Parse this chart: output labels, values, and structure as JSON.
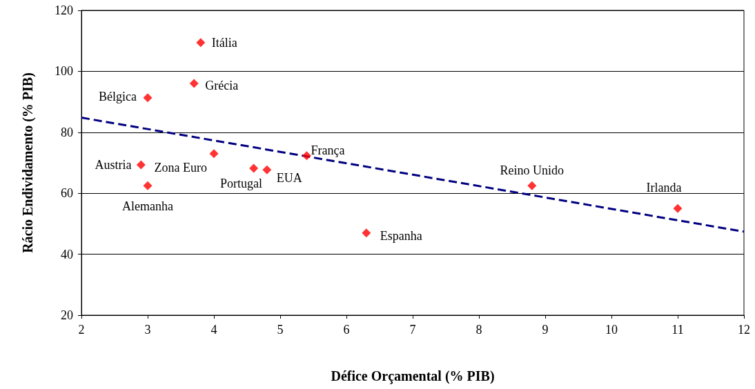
{
  "chart_data": {
    "type": "scatter",
    "xlabel": "Défice Orçamental (% PIB)",
    "ylabel": "Rácio Endividamento (% PIB)",
    "xlim": [
      2,
      12
    ],
    "xticks": [
      2,
      3,
      4,
      5,
      6,
      7,
      8,
      9,
      10,
      11,
      12
    ],
    "ylim": [
      20,
      120
    ],
    "yticks": [
      20,
      40,
      60,
      80,
      100,
      120
    ],
    "grid": "y",
    "series": [
      {
        "color": "#ff0000",
        "marker": "diamond",
        "x": [
          3.8,
          3.7,
          3.0,
          2.9,
          3.0,
          4.0,
          4.6,
          4.8,
          5.4,
          6.3,
          8.8,
          11.0
        ],
        "values": [
          109.4,
          96,
          91.3,
          69.3,
          62.5,
          73,
          68.2,
          67.7,
          72.3,
          47,
          62.5,
          55
        ]
      },
      {
        "type": "line",
        "color": "#000080",
        "line_style": "dashed",
        "marker": "none",
        "x": [
          2,
          12
        ],
        "values": [
          84.8,
          47.4
        ]
      }
    ],
    "annotations": [
      {
        "text": "Itália",
        "x": 3.8,
        "y": 109.4
      },
      {
        "text": "Grécia",
        "x": 3.7,
        "y": 96
      },
      {
        "text": "Bélgica",
        "x": 3.0,
        "y": 91.3
      },
      {
        "text": "Austria",
        "x": 2.9,
        "y": 69.3
      },
      {
        "text": "Alemanha",
        "x": 3.0,
        "y": 62.5
      },
      {
        "text": "Zona Euro",
        "x": 4.0,
        "y": 73
      },
      {
        "text": "Portugal",
        "x": 4.6,
        "y": 68.2
      },
      {
        "text": "EUA",
        "x": 4.8,
        "y": 67.7
      },
      {
        "text": "França",
        "x": 5.4,
        "y": 72.3
      },
      {
        "text": "Espanha",
        "x": 6.3,
        "y": 47
      },
      {
        "text": "Reino Unido",
        "x": 8.8,
        "y": 62.5
      },
      {
        "text": "Irlanda",
        "x": 11.0,
        "y": 55
      }
    ]
  }
}
